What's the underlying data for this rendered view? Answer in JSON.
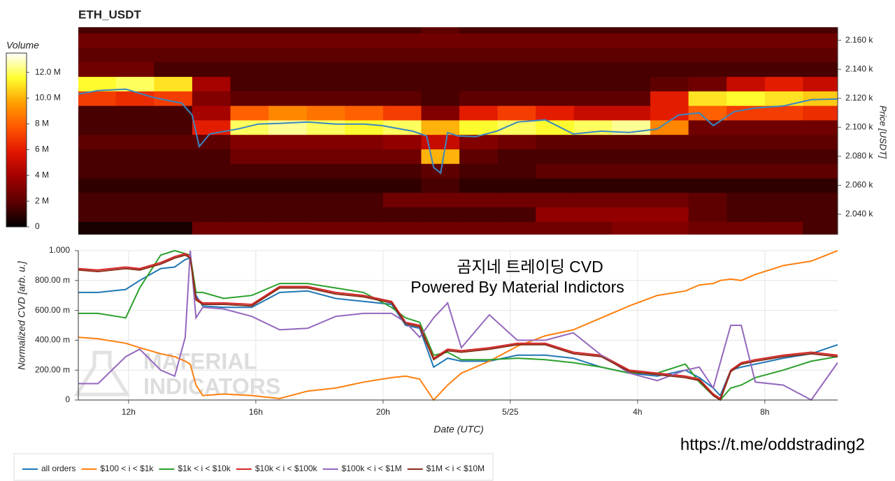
{
  "chart_data": [
    {
      "type": "heatmap",
      "title": "ETH_USDT",
      "y_label": "Price [USDT]",
      "xlim": [
        10.42,
        34.29
      ],
      "ylim": [
        2026,
        2169
      ],
      "yticks": [
        {
          "value": 2040,
          "label": "2.040 k"
        },
        {
          "value": 2060,
          "label": "2.060 k"
        },
        {
          "value": 2080,
          "label": "2.080 k"
        },
        {
          "value": 2100,
          "label": "2.100 k"
        },
        {
          "value": 2120,
          "label": "2.120 k"
        },
        {
          "value": 2140,
          "label": "2.140 k"
        },
        {
          "value": 2160,
          "label": "2.160 k"
        }
      ],
      "xbins": [
        10.42,
        11.6,
        12.8,
        14,
        15.2,
        16.4,
        17.6,
        18.8,
        20,
        21.2,
        22.4,
        23.6,
        24.8,
        26,
        27.2,
        28.4,
        29.6,
        30.8,
        32,
        33.2,
        34.29
      ],
      "ybins": [
        2025,
        2035,
        2045,
        2055,
        2065,
        2075,
        2085,
        2095,
        2105,
        2115,
        2125,
        2135,
        2145,
        2155,
        2165,
        2175
      ],
      "z": [
        [
          0.5,
          0.5,
          0.5,
          2.5,
          2.5,
          2.5,
          2.5,
          2.5,
          2.5,
          2.5,
          2.5,
          2.5,
          2.5,
          2.5,
          3,
          3,
          2.5,
          2.5,
          2.5,
          1.5
        ],
        [
          1.5,
          1.5,
          1.5,
          1.5,
          1.5,
          1.5,
          1.5,
          1.5,
          1.5,
          1.5,
          1.5,
          1.5,
          3.5,
          3.5,
          3.5,
          3.5,
          2,
          1.5,
          1.5,
          1.5
        ],
        [
          1.5,
          1.5,
          1.5,
          1.5,
          1.5,
          1.5,
          1.5,
          1.5,
          2.5,
          2.5,
          2.5,
          2.5,
          2.5,
          2.5,
          2.5,
          2.5,
          2,
          1.5,
          1.5,
          1.5
        ],
        [
          1,
          1,
          1,
          1,
          1,
          1,
          1,
          1,
          1,
          1.5,
          1,
          1,
          1,
          1,
          1,
          1,
          1,
          1,
          1,
          1
        ],
        [
          1.5,
          1.5,
          1.5,
          1.5,
          1.5,
          1.5,
          1.5,
          1.5,
          1.5,
          2,
          1.5,
          1.5,
          2,
          2,
          2,
          2,
          2,
          2,
          2,
          2
        ],
        [
          1.5,
          1.5,
          1.5,
          1.5,
          2.5,
          2.5,
          2.5,
          2.5,
          2.5,
          10,
          2,
          1.5,
          1.5,
          1.5,
          1.5,
          1.5,
          1.5,
          1.5,
          1.5,
          1.5
        ],
        [
          2,
          2,
          2,
          2,
          3,
          3,
          3,
          3,
          3.5,
          5,
          3,
          2.5,
          2,
          2,
          2,
          2,
          2,
          2,
          2,
          2
        ],
        [
          1.5,
          1.5,
          1.5,
          6,
          12,
          12.5,
          12,
          11.5,
          12,
          10,
          11.5,
          12,
          11.5,
          12,
          12.5,
          9,
          2.5,
          2.5,
          2.5,
          2.5
        ],
        [
          1.5,
          1.5,
          1.5,
          4,
          8,
          9,
          8.5,
          8,
          7,
          3,
          6,
          7,
          6,
          5,
          5,
          6,
          8,
          7,
          7,
          6.5
        ],
        [
          7,
          6.5,
          7,
          3,
          2,
          2,
          2,
          2,
          2,
          1.5,
          2,
          2,
          2,
          2,
          2,
          6,
          11,
          11.5,
          11,
          10.5
        ],
        [
          11.5,
          12,
          11,
          4,
          1.5,
          1.5,
          1.5,
          1.5,
          1.5,
          1.5,
          1.5,
          1.5,
          1.5,
          1.5,
          1.5,
          2,
          2.5,
          5,
          6,
          5
        ],
        [
          2.5,
          2.5,
          1.5,
          1.5,
          1.5,
          1.5,
          1.5,
          1.5,
          1.5,
          1.5,
          1.5,
          1.5,
          1.5,
          1.5,
          1.5,
          1.5,
          1.5,
          1.5,
          1.5,
          1.5
        ],
        [
          2,
          2,
          2,
          2,
          2,
          2,
          2,
          2,
          2,
          2,
          2,
          2,
          2,
          2,
          2,
          2,
          2,
          2,
          2,
          2
        ],
        [
          2.5,
          2.5,
          2.5,
          2.5,
          2.5,
          2.5,
          2.5,
          2.5,
          2.5,
          2.5,
          2.5,
          2.5,
          2.5,
          2.5,
          2.5,
          2.5,
          2.5,
          2.5,
          2.5,
          2.5
        ],
        [
          1.5,
          1.5,
          1.5,
          1.5,
          1.5,
          1.5,
          1.5,
          1.5,
          1.5,
          2,
          1.5,
          1.5,
          1.5,
          1.5,
          1.5,
          1.5,
          1.5,
          1.5,
          1.5,
          1.5
        ]
      ],
      "colorbar": {
        "title": "Volume",
        "lim": [
          0,
          13.5
        ],
        "ticks": [
          0,
          {
            "value": 2,
            "label": "2 M"
          },
          {
            "value": 4,
            "label": "4 M"
          },
          {
            "value": 6,
            "label": "6 M"
          },
          {
            "value": 8,
            "label": "8 M"
          },
          {
            "value": 10,
            "label": "10.0 M"
          },
          {
            "value": 12,
            "label": "12.0 M"
          }
        ],
        "colors": [
          "#000000",
          "#5c0000",
          "#a00000",
          "#e01500",
          "#ff5500",
          "#ffa000",
          "#ffff30",
          "#ffffff"
        ]
      },
      "price_line": {
        "color": "#3a87c0",
        "x": [
          10.42,
          11.04,
          11.91,
          12.79,
          13.67,
          14.0,
          14.22,
          14.55,
          15.43,
          16.08,
          16.75,
          17.63,
          18.51,
          19.39,
          19.94,
          20.93,
          21.37,
          21.59,
          21.81,
          22.03,
          22.36,
          22.91,
          23.57,
          24.23,
          25.1,
          25.98,
          26.86,
          27.74,
          28.62,
          29.28,
          29.94,
          30.38,
          31.04,
          31.7,
          32.58,
          33.46,
          34.29
        ],
        "values": [
          2122.9,
          2125.3,
          2126.3,
          2120.5,
          2116.6,
          2108.4,
          2086.7,
          2095.4,
          2098.8,
          2102.2,
          2102.7,
          2103.6,
          2102.2,
          2102.2,
          2101.2,
          2097.3,
          2094.0,
          2072.3,
          2068.4,
          2096.4,
          2094.0,
          2093.5,
          2097.3,
          2103.6,
          2105.1,
          2095.4,
          2097.3,
          2096.4,
          2098.8,
          2108.4,
          2109.9,
          2101.2,
          2110.8,
          2113.3,
          2114.7,
          2119.0,
          2119.5
        ]
      }
    },
    {
      "type": "line",
      "x_label": "Date (UTC)",
      "y_label": "Normalized CVD [arb. u.]",
      "grid": true,
      "xlim": [
        10.42,
        34.29
      ],
      "ylim": [
        0,
        1
      ],
      "xticks": [
        {
          "value": 12,
          "label": "12h"
        },
        {
          "value": 16,
          "label": "16h"
        },
        {
          "value": 20,
          "label": "20h"
        },
        {
          "value": 24,
          "label": "5/25"
        },
        {
          "value": 28,
          "label": "4h"
        },
        {
          "value": 32,
          "label": "8h"
        }
      ],
      "yticks": [
        0,
        {
          "value": 0.2,
          "label": "200.00 m"
        },
        {
          "value": 0.4,
          "label": "400.00 m"
        },
        {
          "value": 0.6,
          "label": "600.00 m"
        },
        {
          "value": 0.8,
          "label": "800.00 m"
        },
        {
          "value": 1,
          "label": "1.000"
        }
      ],
      "annotations": [
        "곰지네 트레이딩 CVD",
        "Powered By Material Indictors"
      ],
      "watermark": [
        "MATERIAL",
        "INDICATORS"
      ],
      "url": "https://t.me/oddstrading2",
      "x": [
        10.42,
        11.04,
        11.91,
        12.35,
        13.01,
        13.45,
        13.78,
        13.94,
        14.12,
        14.33,
        14.99,
        15.87,
        16.75,
        17.63,
        18.51,
        19.39,
        20.27,
        20.71,
        21.15,
        21.59,
        22.03,
        22.46,
        23.34,
        24.22,
        25.1,
        25.98,
        26.86,
        27.74,
        28.62,
        29.5,
        29.94,
        30.38,
        30.6,
        30.93,
        31.26,
        31.7,
        32.58,
        33.46,
        34.29
      ],
      "series": [
        {
          "name": "all orders",
          "color": "#1f77b4",
          "values": [
            0.72,
            0.72,
            0.74,
            0.8,
            0.88,
            0.89,
            0.94,
            0.95,
            0.7,
            0.63,
            0.62,
            0.62,
            0.72,
            0.73,
            0.68,
            0.66,
            0.64,
            0.5,
            0.48,
            0.22,
            0.28,
            0.26,
            0.26,
            0.3,
            0.3,
            0.28,
            0.22,
            0.18,
            0.16,
            0.2,
            0.15,
            0.08,
            0.03,
            0.2,
            0.22,
            0.24,
            0.28,
            0.31,
            0.37
          ]
        },
        {
          "name": "$100 < i < $1k",
          "color": "#ff7f0e",
          "values": [
            0.42,
            0.41,
            0.38,
            0.35,
            0.31,
            0.29,
            0.26,
            0.24,
            0.1,
            0.03,
            0.04,
            0.03,
            0.01,
            0.06,
            0.08,
            0.12,
            0.15,
            0.16,
            0.14,
            0.0,
            0.1,
            0.18,
            0.26,
            0.36,
            0.43,
            0.47,
            0.55,
            0.63,
            0.7,
            0.73,
            0.77,
            0.78,
            0.8,
            0.81,
            0.8,
            0.84,
            0.9,
            0.93,
            1.0
          ]
        },
        {
          "name": "$1k < i < $10k",
          "color": "#2ca02c",
          "values": [
            0.58,
            0.58,
            0.55,
            0.75,
            0.97,
            1.0,
            0.98,
            0.97,
            0.72,
            0.72,
            0.68,
            0.7,
            0.78,
            0.78,
            0.75,
            0.72,
            0.62,
            0.55,
            0.52,
            0.3,
            0.32,
            0.27,
            0.27,
            0.28,
            0.27,
            0.25,
            0.22,
            0.18,
            0.18,
            0.24,
            0.12,
            0.03,
            0.0,
            0.08,
            0.1,
            0.15,
            0.2,
            0.26,
            0.29
          ]
        },
        {
          "name": "$10k < i < $100k",
          "color": "#d62728",
          "values": [
            0.88,
            0.87,
            0.89,
            0.88,
            0.92,
            0.96,
            0.98,
            0.96,
            0.68,
            0.65,
            0.65,
            0.64,
            0.76,
            0.76,
            0.72,
            0.7,
            0.66,
            0.52,
            0.5,
            0.28,
            0.34,
            0.33,
            0.35,
            0.38,
            0.38,
            0.32,
            0.3,
            0.2,
            0.18,
            0.16,
            0.14,
            0.04,
            0.01,
            0.2,
            0.25,
            0.27,
            0.3,
            0.32,
            0.3
          ]
        },
        {
          "name": "$100k < i < $1M",
          "color": "#9467bd",
          "values": [
            0.11,
            0.11,
            0.29,
            0.34,
            0.2,
            0.16,
            0.42,
            1.0,
            0.55,
            0.62,
            0.61,
            0.56,
            0.47,
            0.48,
            0.56,
            0.58,
            0.58,
            0.52,
            0.42,
            0.55,
            0.65,
            0.35,
            0.57,
            0.4,
            0.4,
            0.45,
            0.3,
            0.18,
            0.13,
            0.2,
            0.22,
            0.08,
            0.25,
            0.5,
            0.5,
            0.12,
            0.1,
            0.0,
            0.25
          ]
        },
        {
          "name": "$1M < i < $10M",
          "color": "#8c2d19",
          "values": [
            0.87,
            0.86,
            0.88,
            0.87,
            0.91,
            0.95,
            0.97,
            0.95,
            0.67,
            0.64,
            0.64,
            0.63,
            0.75,
            0.75,
            0.71,
            0.69,
            0.65,
            0.51,
            0.49,
            0.27,
            0.33,
            0.32,
            0.34,
            0.37,
            0.37,
            0.31,
            0.29,
            0.19,
            0.17,
            0.15,
            0.13,
            0.03,
            0.0,
            0.19,
            0.24,
            0.26,
            0.29,
            0.31,
            0.29
          ]
        }
      ]
    }
  ]
}
